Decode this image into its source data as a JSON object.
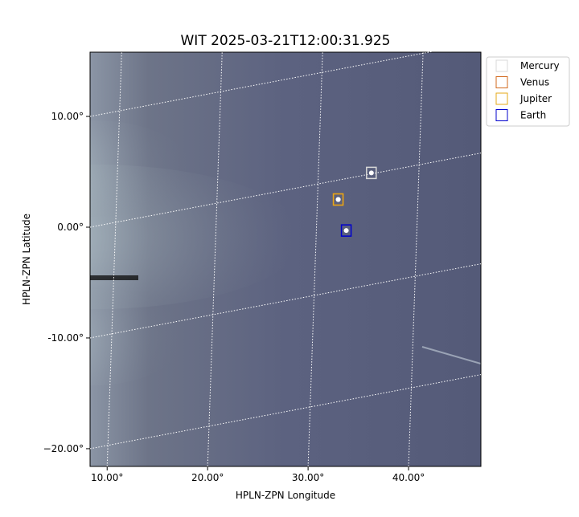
{
  "chart_data": {
    "type": "scatter",
    "title": "WIT 2025-03-21T12:00:31.925",
    "x_label": "HPLN-ZPN Longitude",
    "y_label": "HPLN-ZPN Latitude",
    "xlim": [
      8.3,
      47.2
    ],
    "ylim": [
      -21.6,
      15.8
    ],
    "xticks": [
      {
        "value": 10,
        "label": "10.00°"
      },
      {
        "value": 20,
        "label": "20.00°"
      },
      {
        "value": 30,
        "label": "30.00°"
      },
      {
        "value": 40,
        "label": "40.00°"
      }
    ],
    "yticks": [
      {
        "value": 10,
        "label": "10.00°"
      },
      {
        "value": 0,
        "label": "0.00°"
      },
      {
        "value": -10,
        "label": "-10.00°"
      },
      {
        "value": -20,
        "label": "−20.00°"
      }
    ],
    "grid": true,
    "legend": "outside-upper-right",
    "series": [
      {
        "name": "Mercury",
        "color": "#d8d8d8",
        "x": [
          36.3
        ],
        "values": [
          4.9
        ]
      },
      {
        "name": "Venus",
        "color": "#d2691e",
        "x": [
          33.0
        ],
        "values": [
          2.5
        ]
      },
      {
        "name": "Jupiter",
        "color": "#e6a817",
        "x": [
          33.0
        ],
        "values": [
          2.5
        ]
      },
      {
        "name": "Earth",
        "color": "#0000cd",
        "x": [
          33.8
        ],
        "values": [
          -0.3
        ]
      }
    ]
  }
}
